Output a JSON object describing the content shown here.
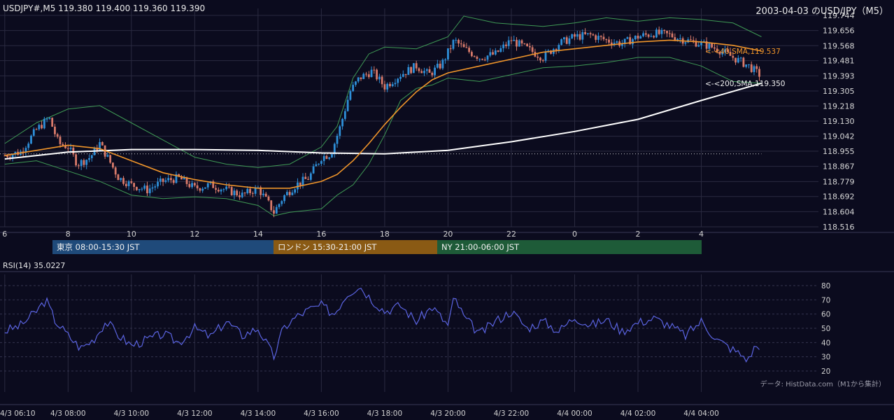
{
  "header": {
    "symbol_info": "USDJPY#,M5 119.380 119.400 119.360 119.390",
    "page_title": "2003-04-03 のUSD/JPY（M5）"
  },
  "sessions": [
    {
      "label": "東京 08:00-15:30 JST",
      "color": "#1f4a7a"
    },
    {
      "label": "ロンドン 15:30-21:00 JST",
      "color": "#8a5a14"
    },
    {
      "label": "NY 21:00-06:00 JST",
      "color": "#1e5b38"
    }
  ],
  "rsi": {
    "title": "RSI(14) 35.0227"
  },
  "source_note": "データ: HistData.com（M1から集計）",
  "colors": {
    "background": "#0b0b1e",
    "up": "#2e8fd8",
    "down": "#d87a6a",
    "sma40": "#f0952a",
    "sma200": "#ffffff",
    "bollinger": "#3f9a55",
    "rsi": "#5a63e0",
    "grid": "#2a2a40"
  },
  "chart_data": [
    {
      "type": "candlestick",
      "title": "USDJPY#,M5",
      "x_tick_labels": [
        "6",
        "8",
        "10",
        "12",
        "14",
        "16",
        "18",
        "20",
        "22",
        "0",
        "2",
        "4"
      ],
      "y_tick_labels": [
        "119.744",
        "119.656",
        "119.568",
        "119.481",
        "119.393",
        "119.305",
        "119.218",
        "119.130",
        "119.042",
        "118.955",
        "118.867",
        "118.779",
        "118.692",
        "118.604",
        "118.516"
      ],
      "ylim": [
        118.516,
        119.744
      ],
      "grid": true,
      "series": [
        {
          "name": "40,SMA",
          "last_label": "<-<40,SMA,119.537"
        },
        {
          "name": "200,SMA",
          "last_label": "<-<200,SMA,119.350"
        }
      ],
      "close_path": [
        [
          6.0,
          118.93
        ],
        [
          6.5,
          118.95
        ],
        [
          7.0,
          119.08
        ],
        [
          7.4,
          119.15
        ],
        [
          7.7,
          119.0
        ],
        [
          8.0,
          118.98
        ],
        [
          8.3,
          118.88
        ],
        [
          8.7,
          118.92
        ],
        [
          9.0,
          119.0
        ],
        [
          9.3,
          118.9
        ],
        [
          9.6,
          118.8
        ],
        [
          10.0,
          118.76
        ],
        [
          10.5,
          118.73
        ],
        [
          11.0,
          118.78
        ],
        [
          11.5,
          118.8
        ],
        [
          12.0,
          118.74
        ],
        [
          12.5,
          118.76
        ],
        [
          13.0,
          118.73
        ],
        [
          13.5,
          118.7
        ],
        [
          14.0,
          118.74
        ],
        [
          14.3,
          118.66
        ],
        [
          14.5,
          118.6
        ],
        [
          14.8,
          118.69
        ],
        [
          15.2,
          118.76
        ],
        [
          15.6,
          118.8
        ],
        [
          16.0,
          118.92
        ],
        [
          16.3,
          118.94
        ],
        [
          16.6,
          119.1
        ],
        [
          16.9,
          119.3
        ],
        [
          17.2,
          119.38
        ],
        [
          17.6,
          119.42
        ],
        [
          18.0,
          119.33
        ],
        [
          18.5,
          119.4
        ],
        [
          19.0,
          119.45
        ],
        [
          19.4,
          119.4
        ],
        [
          19.8,
          119.46
        ],
        [
          20.2,
          119.6
        ],
        [
          20.5,
          119.55
        ],
        [
          21.0,
          119.5
        ],
        [
          21.5,
          119.52
        ],
        [
          22.0,
          119.6
        ],
        [
          22.5,
          119.55
        ],
        [
          23.0,
          119.5
        ],
        [
          23.5,
          119.58
        ],
        [
          24.0,
          119.62
        ],
        [
          24.5,
          119.63
        ],
        [
          25.0,
          119.6
        ],
        [
          25.5,
          119.58
        ],
        [
          26.0,
          119.62
        ],
        [
          26.5,
          119.64
        ],
        [
          27.0,
          119.63
        ],
        [
          27.5,
          119.6
        ],
        [
          28.0,
          119.58
        ],
        [
          28.5,
          119.55
        ],
        [
          29.0,
          119.5
        ],
        [
          29.5,
          119.45
        ],
        [
          29.9,
          119.39
        ]
      ],
      "sma40_path": [
        [
          6.0,
          118.93
        ],
        [
          7.0,
          118.96
        ],
        [
          8.0,
          118.99
        ],
        [
          9.0,
          118.97
        ],
        [
          10.0,
          118.9
        ],
        [
          11.0,
          118.83
        ],
        [
          12.0,
          118.79
        ],
        [
          13.0,
          118.76
        ],
        [
          14.0,
          118.74
        ],
        [
          15.0,
          118.74
        ],
        [
          16.0,
          118.78
        ],
        [
          16.5,
          118.82
        ],
        [
          17.0,
          118.9
        ],
        [
          17.5,
          119.0
        ],
        [
          18.0,
          119.11
        ],
        [
          18.5,
          119.21
        ],
        [
          19.0,
          119.3
        ],
        [
          19.5,
          119.37
        ],
        [
          20.0,
          119.41
        ],
        [
          21.0,
          119.45
        ],
        [
          22.0,
          119.49
        ],
        [
          23.0,
          119.53
        ],
        [
          24.0,
          119.55
        ],
        [
          25.0,
          119.57
        ],
        [
          26.0,
          119.59
        ],
        [
          27.0,
          119.6
        ],
        [
          28.0,
          119.59
        ],
        [
          29.0,
          119.57
        ],
        [
          29.9,
          119.537
        ]
      ],
      "sma200_path": [
        [
          6.0,
          118.91
        ],
        [
          8.0,
          118.95
        ],
        [
          10.0,
          118.965
        ],
        [
          12.0,
          118.965
        ],
        [
          14.0,
          118.96
        ],
        [
          16.0,
          118.945
        ],
        [
          18.0,
          118.94
        ],
        [
          20.0,
          118.96
        ],
        [
          22.0,
          119.01
        ],
        [
          24.0,
          119.07
        ],
        [
          26.0,
          119.14
        ],
        [
          28.0,
          119.25
        ],
        [
          29.9,
          119.35
        ]
      ],
      "boll_upper_path": [
        [
          6.0,
          119.0
        ],
        [
          7.0,
          119.12
        ],
        [
          8.0,
          119.2
        ],
        [
          9.0,
          119.22
        ],
        [
          10.0,
          119.12
        ],
        [
          11.0,
          119.02
        ],
        [
          12.0,
          118.92
        ],
        [
          13.0,
          118.88
        ],
        [
          14.0,
          118.86
        ],
        [
          15.0,
          118.88
        ],
        [
          16.0,
          118.98
        ],
        [
          16.5,
          119.1
        ],
        [
          17.0,
          119.38
        ],
        [
          17.5,
          119.52
        ],
        [
          18.0,
          119.56
        ],
        [
          19.0,
          119.55
        ],
        [
          20.0,
          119.62
        ],
        [
          20.5,
          119.74
        ],
        [
          21.5,
          119.7
        ],
        [
          23.0,
          119.68
        ],
        [
          24.0,
          119.7
        ],
        [
          25.0,
          119.73
        ],
        [
          26.0,
          119.71
        ],
        [
          27.0,
          119.73
        ],
        [
          28.0,
          119.72
        ],
        [
          29.0,
          119.7
        ],
        [
          29.9,
          119.62
        ]
      ],
      "boll_lower_path": [
        [
          6.0,
          118.88
        ],
        [
          7.0,
          118.9
        ],
        [
          8.0,
          118.84
        ],
        [
          9.0,
          118.78
        ],
        [
          10.0,
          118.7
        ],
        [
          11.0,
          118.68
        ],
        [
          12.0,
          118.69
        ],
        [
          13.0,
          118.68
        ],
        [
          14.0,
          118.64
        ],
        [
          14.5,
          118.58
        ],
        [
          15.0,
          118.6
        ],
        [
          16.0,
          118.62
        ],
        [
          16.5,
          118.7
        ],
        [
          17.0,
          118.76
        ],
        [
          17.5,
          118.88
        ],
        [
          18.0,
          119.05
        ],
        [
          18.5,
          119.25
        ],
        [
          19.0,
          119.32
        ],
        [
          19.5,
          119.34
        ],
        [
          20.0,
          119.38
        ],
        [
          21.0,
          119.36
        ],
        [
          22.0,
          119.4
        ],
        [
          23.0,
          119.44
        ],
        [
          24.0,
          119.45
        ],
        [
          25.0,
          119.47
        ],
        [
          26.0,
          119.5
        ],
        [
          27.0,
          119.5
        ],
        [
          28.0,
          119.45
        ],
        [
          29.0,
          119.36
        ],
        [
          29.9,
          119.35
        ]
      ],
      "reference_line": 118.94
    },
    {
      "type": "line",
      "title": "RSI(14) 35.0227",
      "y_tick_labels": [
        "80",
        "70",
        "60",
        "50",
        "40",
        "30",
        "20"
      ],
      "ylim": [
        20,
        80
      ],
      "x_tick_labels": [
        "4/3 06:10",
        "4/3 08:00",
        "4/3 10:00",
        "4/3 12:00",
        "4/3 14:00",
        "4/3 16:00",
        "4/3 18:00",
        "4/3 20:00",
        "4/3 22:00",
        "4/4 00:00",
        "4/4 02:00",
        "4/4 04:00"
      ],
      "rsi_path": [
        [
          6.0,
          48
        ],
        [
          6.5,
          52
        ],
        [
          7.0,
          62
        ],
        [
          7.3,
          70
        ],
        [
          7.6,
          55
        ],
        [
          8.0,
          45
        ],
        [
          8.4,
          36
        ],
        [
          8.8,
          42
        ],
        [
          9.2,
          55
        ],
        [
          9.6,
          45
        ],
        [
          10.0,
          38
        ],
        [
          10.5,
          42
        ],
        [
          11.0,
          46
        ],
        [
          11.5,
          40
        ],
        [
          12.0,
          50
        ],
        [
          12.5,
          44
        ],
        [
          13.0,
          55
        ],
        [
          13.5,
          45
        ],
        [
          14.0,
          50
        ],
        [
          14.3,
          38
        ],
        [
          14.5,
          30
        ],
        [
          14.8,
          50
        ],
        [
          15.2,
          58
        ],
        [
          15.6,
          63
        ],
        [
          16.0,
          66
        ],
        [
          16.4,
          60
        ],
        [
          16.8,
          74
        ],
        [
          17.2,
          80
        ],
        [
          17.6,
          70
        ],
        [
          18.0,
          62
        ],
        [
          18.5,
          66
        ],
        [
          19.0,
          55
        ],
        [
          19.5,
          65
        ],
        [
          20.0,
          52
        ],
        [
          20.2,
          72
        ],
        [
          20.5,
          58
        ],
        [
          21.0,
          46
        ],
        [
          21.5,
          55
        ],
        [
          22.0,
          62
        ],
        [
          22.5,
          50
        ],
        [
          23.0,
          55
        ],
        [
          23.5,
          48
        ],
        [
          24.0,
          58
        ],
        [
          24.5,
          52
        ],
        [
          25.0,
          56
        ],
        [
          25.5,
          48
        ],
        [
          26.0,
          54
        ],
        [
          26.5,
          57
        ],
        [
          27.0,
          52
        ],
        [
          27.5,
          45
        ],
        [
          28.0,
          55
        ],
        [
          28.5,
          42
        ],
        [
          29.0,
          35
        ],
        [
          29.5,
          28
        ],
        [
          29.7,
          38
        ],
        [
          29.9,
          35
        ]
      ]
    }
  ]
}
